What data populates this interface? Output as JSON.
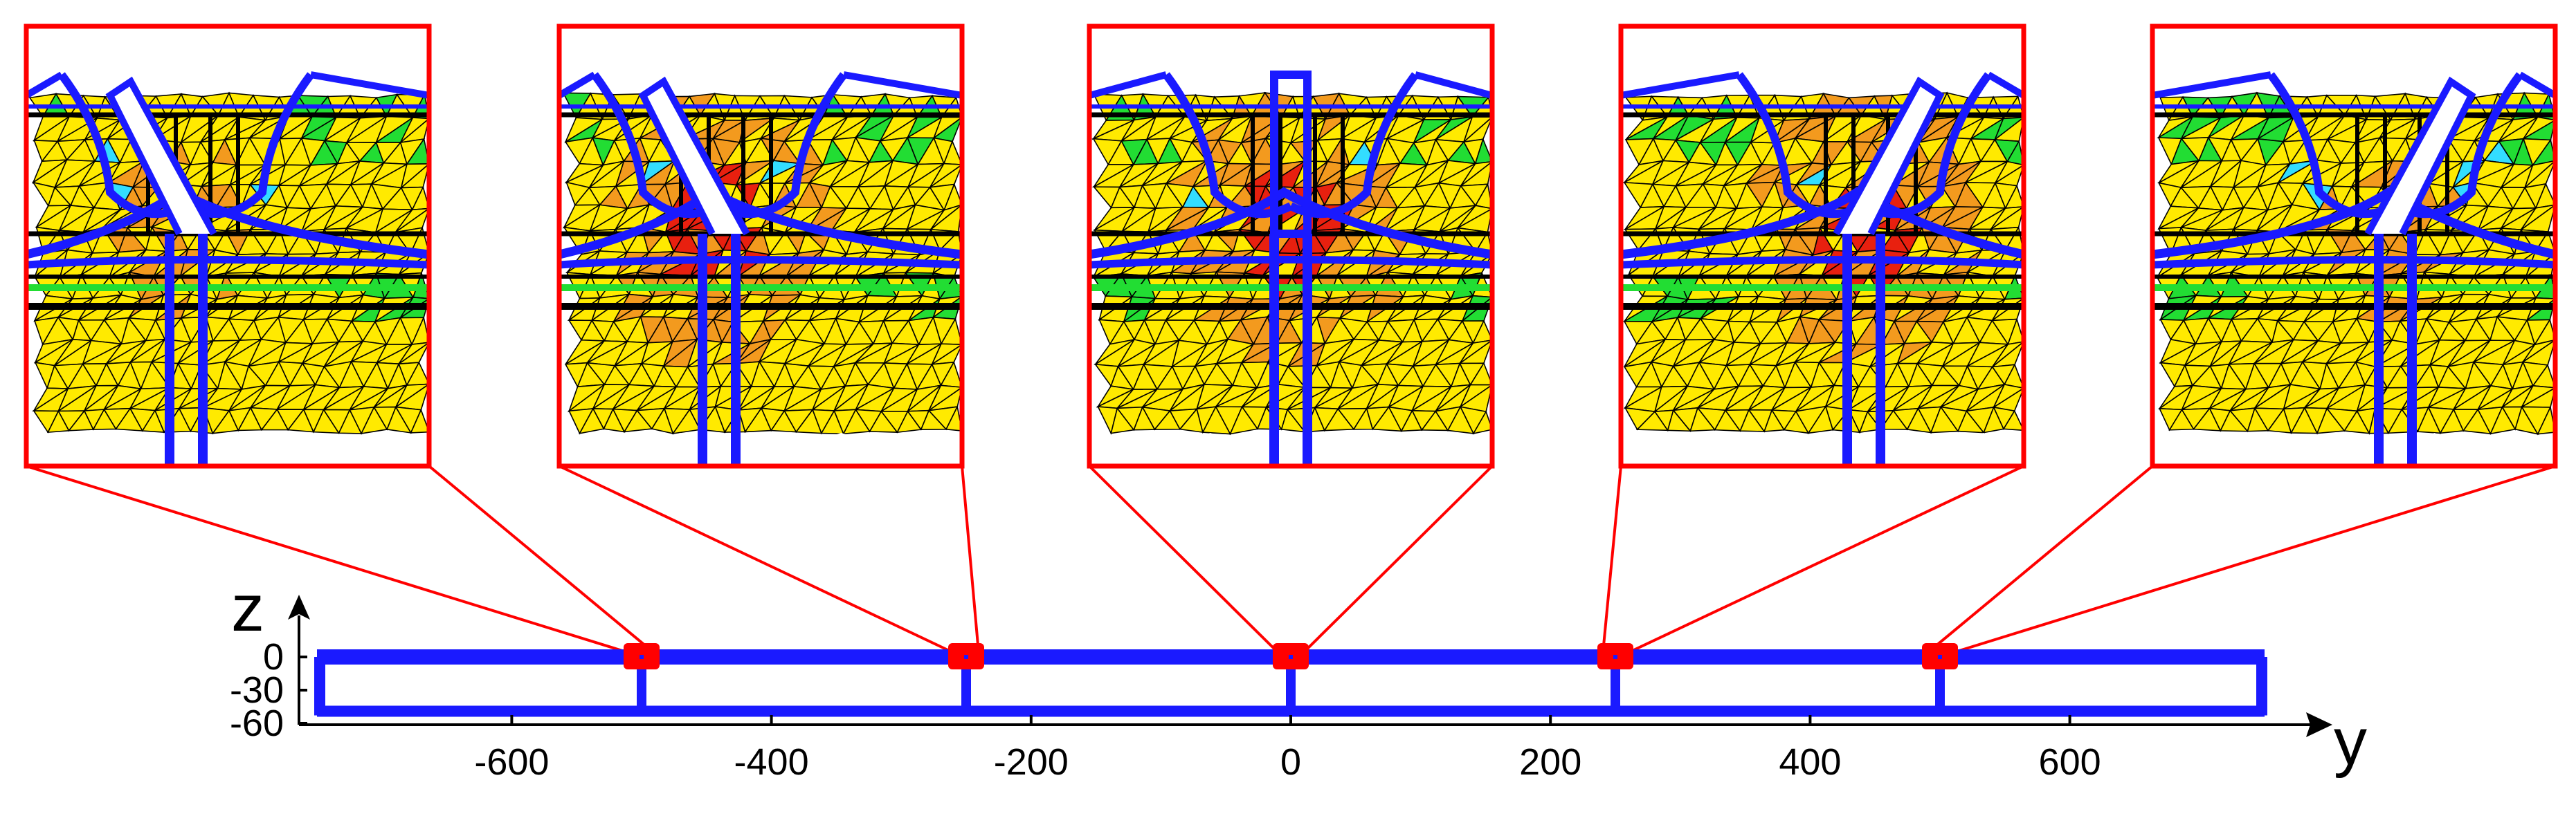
{
  "colors": {
    "frame_blue": "#1a1aff",
    "zoom_red": "#ff0000",
    "mesh_yellow": "#ffea00",
    "mesh_green": "#22dd33",
    "mesh_orange": "#f39a1e",
    "mesh_red": "#e8200f",
    "mesh_cyan": "#33ddff",
    "mesh_line": "#000000"
  },
  "chart_data": {
    "type": "diagram",
    "x_axis": {
      "label": "y",
      "ticks": [
        "-600",
        "-400",
        "-200",
        "0",
        "200",
        "400",
        "600"
      ],
      "tick_values": [
        -600,
        -400,
        -200,
        0,
        200,
        400,
        600
      ],
      "range": [
        -760,
        760
      ]
    },
    "z_axis": {
      "label": "z",
      "ticks": [
        "0",
        "-30",
        "-60"
      ],
      "tick_values": [
        0,
        -30,
        -60
      ],
      "range": [
        -60,
        0
      ]
    },
    "frame": {
      "y_range": [
        -750,
        750
      ],
      "z_levels": [
        0,
        -50
      ]
    },
    "columns_y": [
      -500,
      -250,
      0,
      250,
      500
    ],
    "zoom_insets": [
      {
        "y": -500,
        "pattern": "mild",
        "leg_shift": -1
      },
      {
        "y": -250,
        "pattern": "strong",
        "leg_shift": -1
      },
      {
        "y": 0,
        "pattern": "strong",
        "leg_shift": 0
      },
      {
        "y": 250,
        "pattern": "strong",
        "leg_shift": 1
      },
      {
        "y": 500,
        "pattern": "mild",
        "leg_shift": 1
      }
    ]
  }
}
